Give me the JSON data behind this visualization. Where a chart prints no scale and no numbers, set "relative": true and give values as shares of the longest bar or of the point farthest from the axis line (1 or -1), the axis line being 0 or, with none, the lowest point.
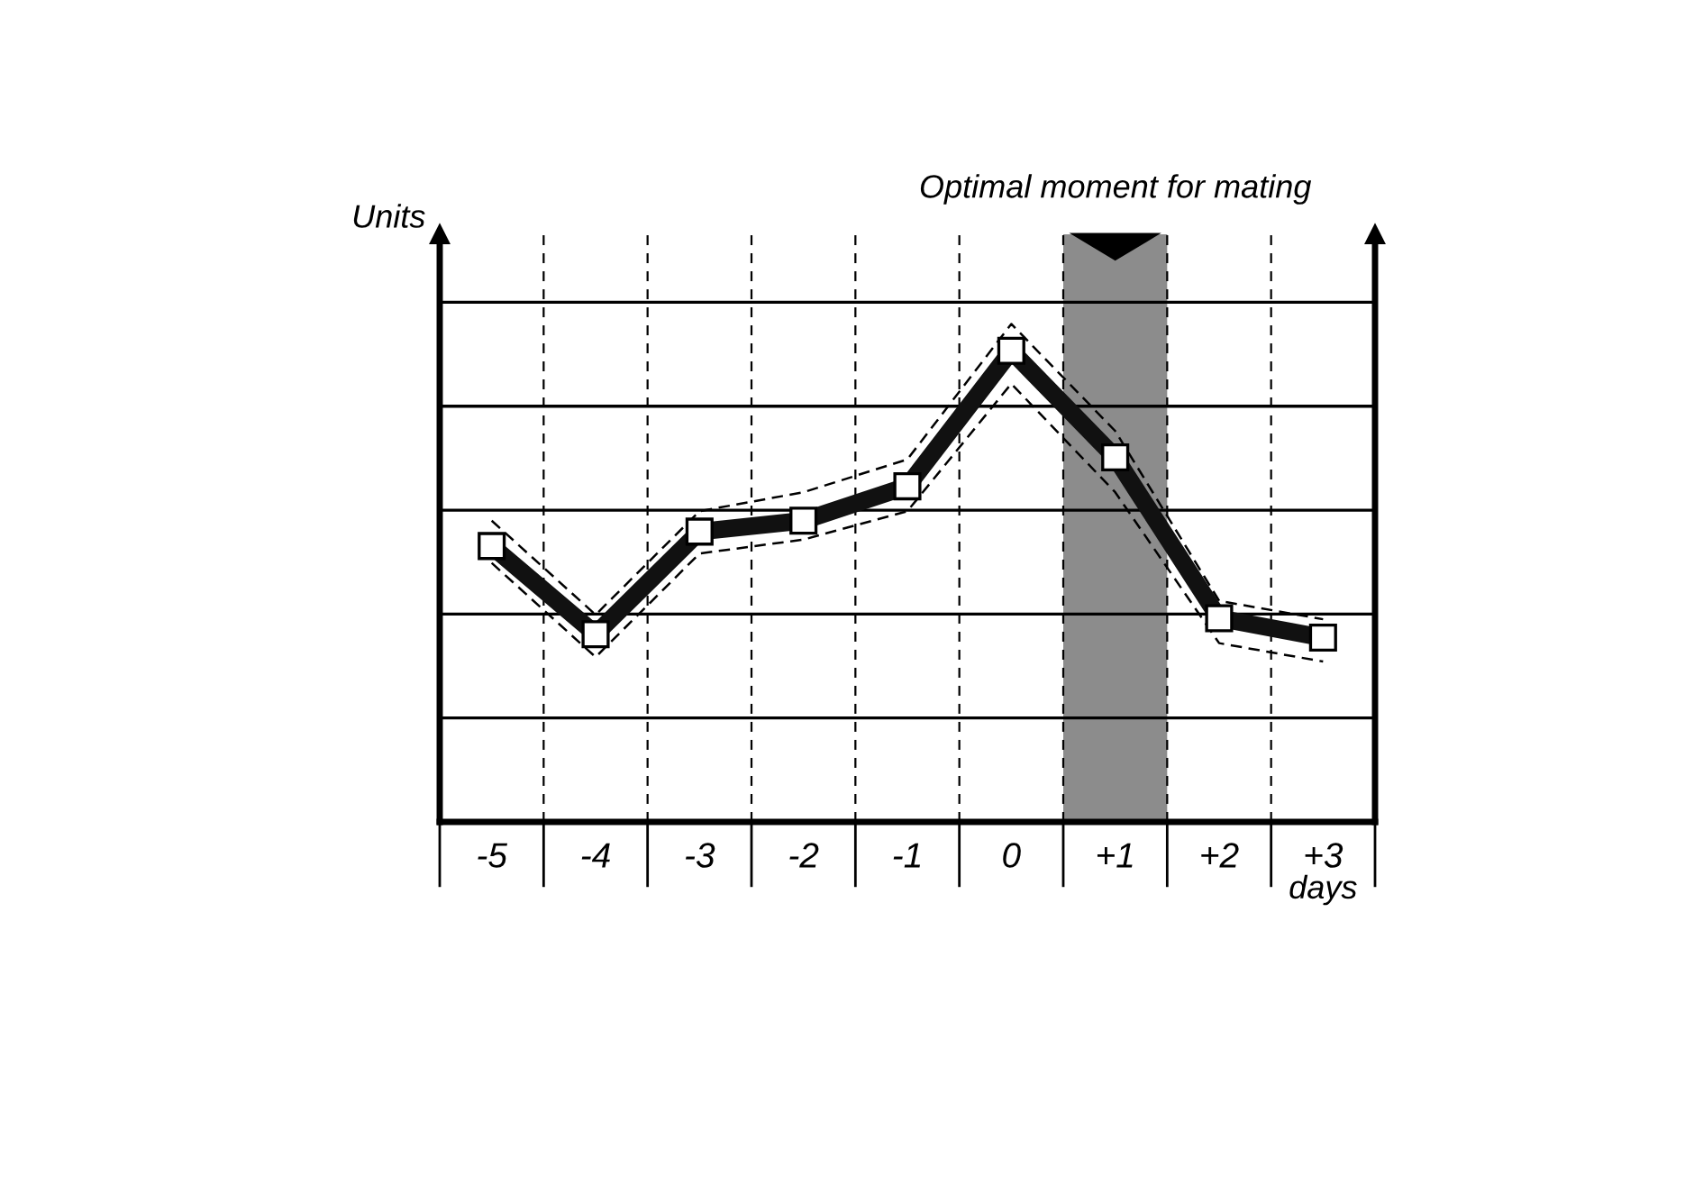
{
  "chart_data": {
    "type": "line",
    "relative": true,
    "ylabel": "Units",
    "xlabel": "days",
    "categories": [
      "-5",
      "-4",
      "-3",
      "-2",
      "-1",
      "0",
      "+1",
      "+2",
      "+3"
    ],
    "series": [
      {
        "color": "#000000",
        "line_style": "dashed",
        "marker": "none",
        "values": [
          0.605,
          0.416,
          0.624,
          0.662,
          0.728,
          1,
          0.785,
          0.444,
          0.407
        ]
      },
      {
        "color": "#000000",
        "line_style": "dashed",
        "marker": "none",
        "values": [
          0.52,
          0.331,
          0.539,
          0.567,
          0.624,
          0.88,
          0.662,
          0.359,
          0.322
        ]
      },
      {
        "color": "#111111",
        "line_style": "solid",
        "marker": "square",
        "values": [
          0.554,
          0.377,
          0.583,
          0.605,
          0.674,
          0.946,
          0.732,
          0.409,
          0.37
        ]
      }
    ],
    "bands": [
      {
        "axis": "x",
        "from": "+1",
        "to": "+1",
        "label": "Optimal moment for mating",
        "color": "#8c8c8c"
      }
    ],
    "grid": true,
    "tick_labels": "x"
  }
}
